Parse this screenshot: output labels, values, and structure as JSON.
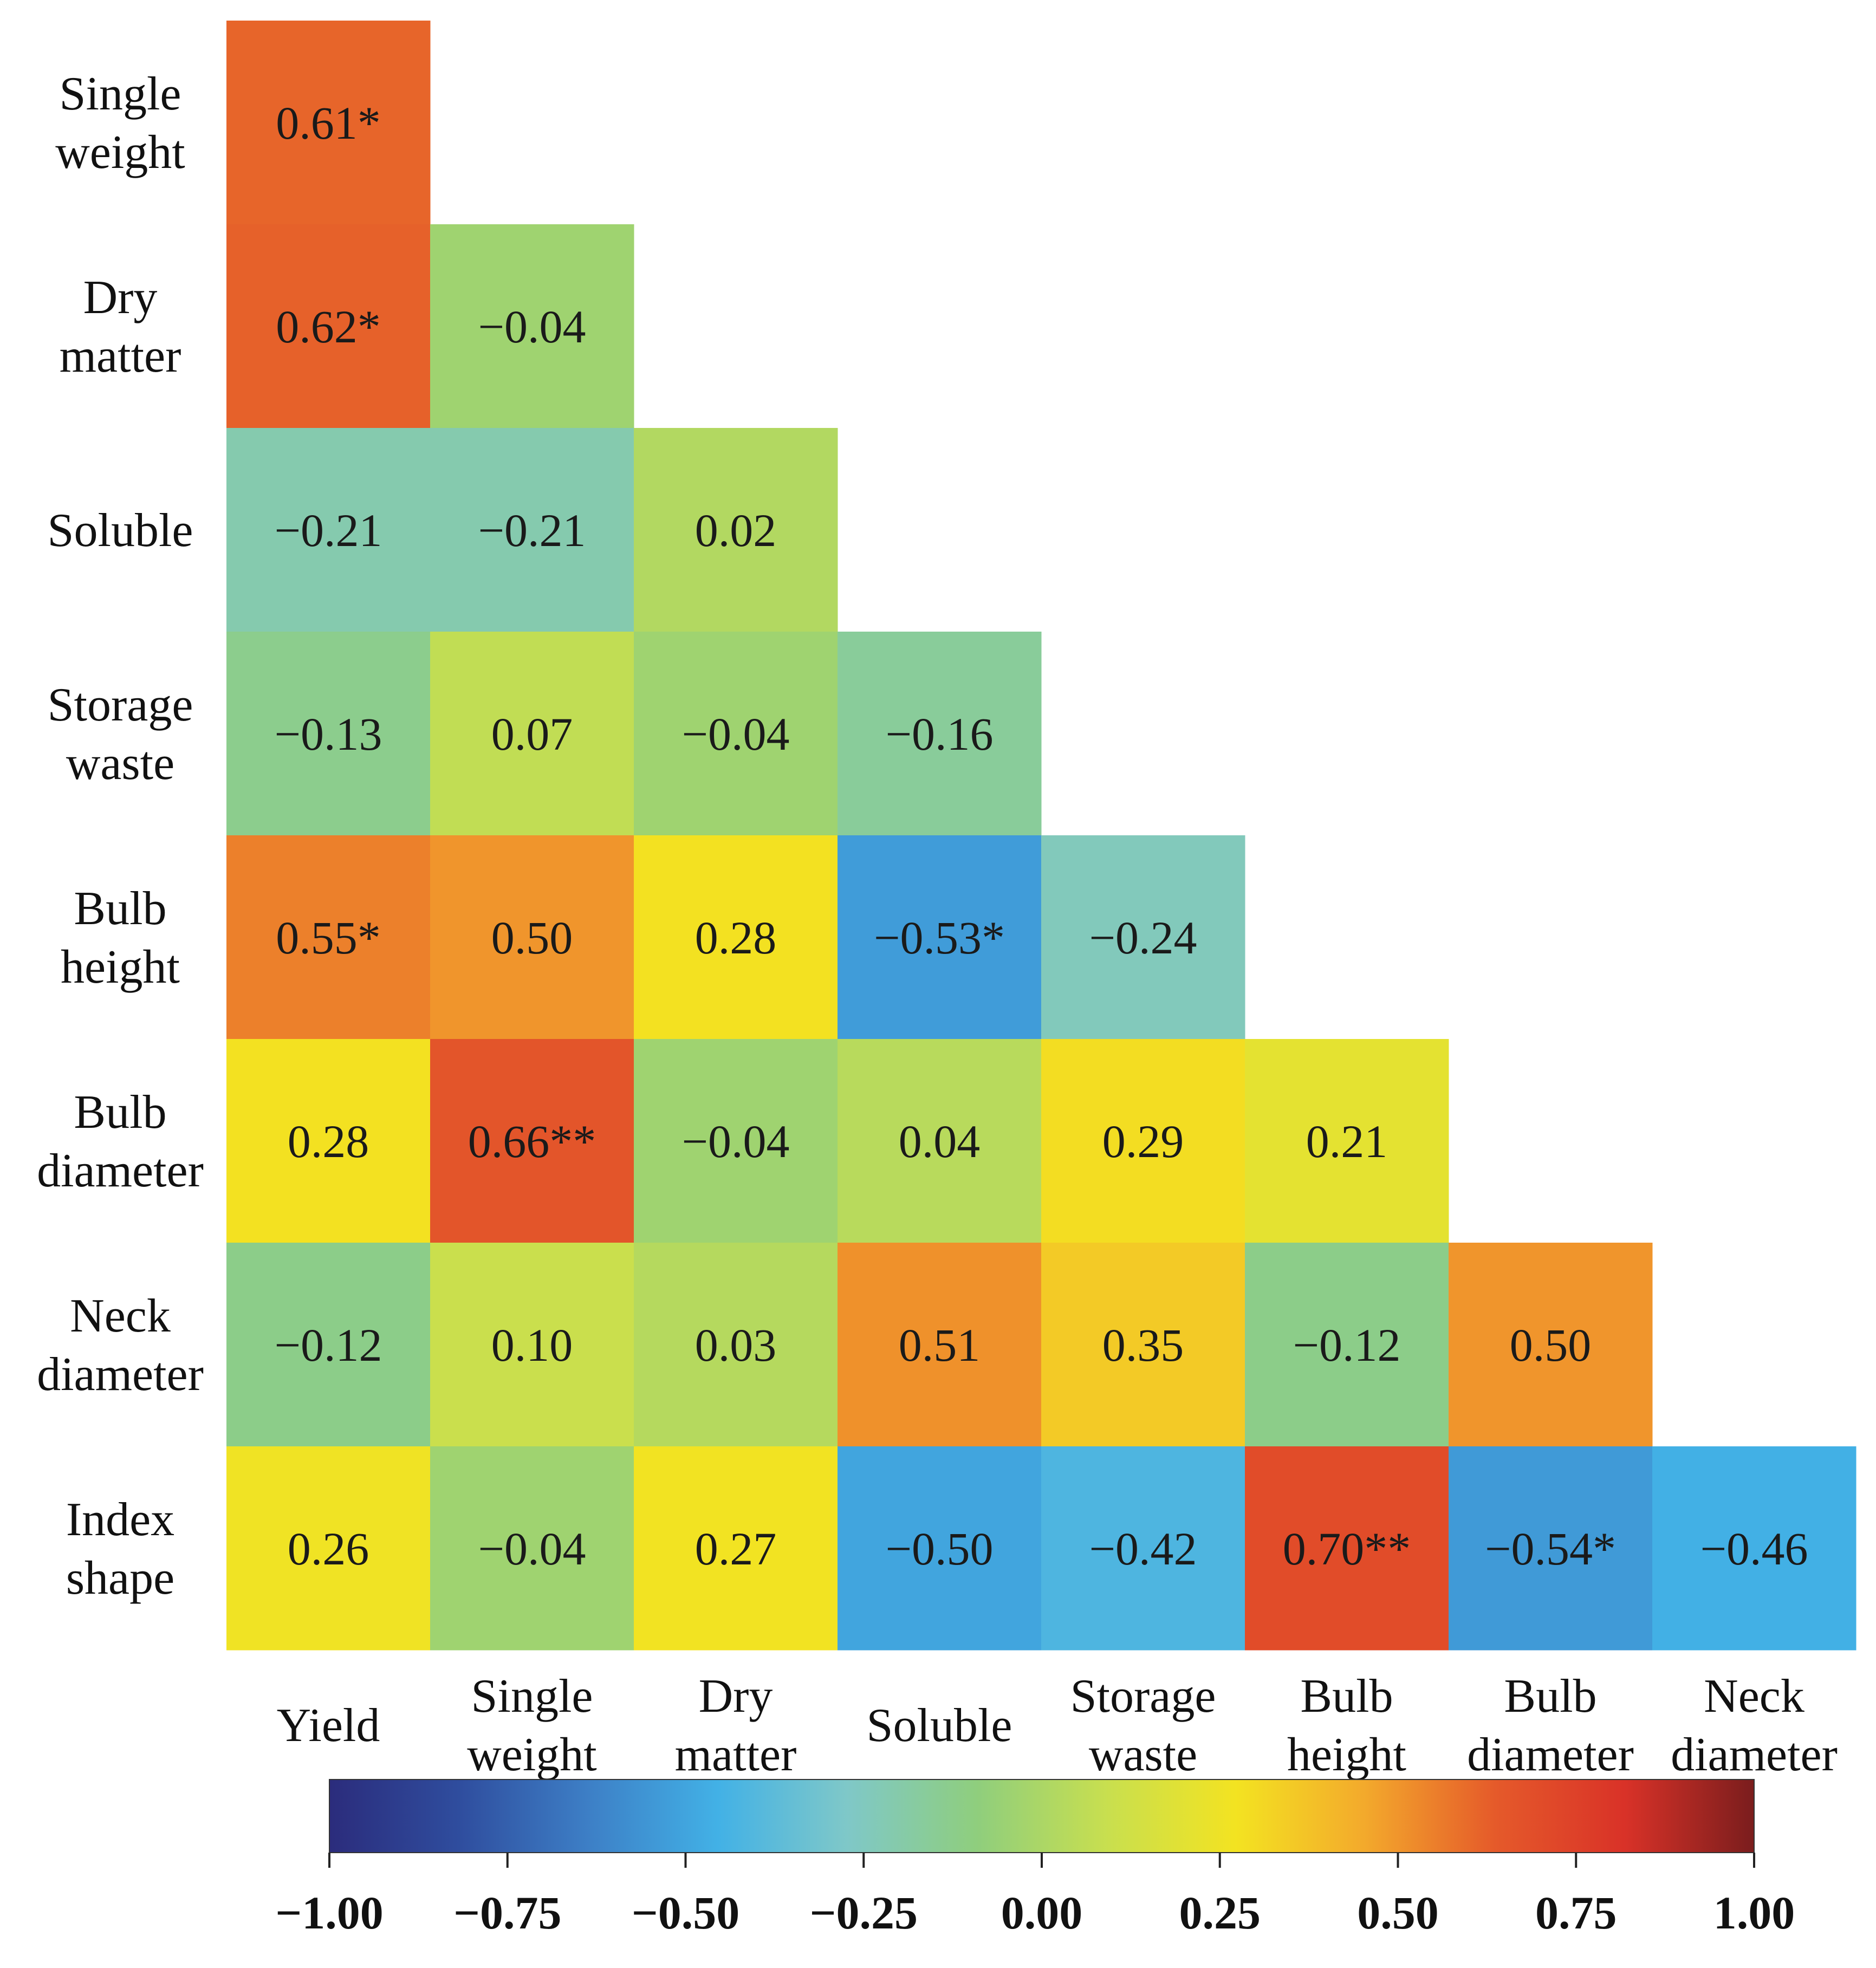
{
  "chart_data": {
    "type": "heatmap",
    "title": "",
    "row_labels": [
      [
        "Single",
        "weight"
      ],
      [
        "Dry",
        "matter"
      ],
      [
        "Soluble"
      ],
      [
        "Storage",
        "waste"
      ],
      [
        "Bulb",
        "height"
      ],
      [
        "Bulb",
        "diameter"
      ],
      [
        "Neck",
        "diameter"
      ],
      [
        "Index",
        "shape"
      ]
    ],
    "column_labels": [
      [
        "Yield"
      ],
      [
        "Single",
        "weight"
      ],
      [
        "Dry",
        "matter"
      ],
      [
        "Soluble"
      ],
      [
        "Storage",
        "waste"
      ],
      [
        "Bulb",
        "height"
      ],
      [
        "Bulb",
        "diameter"
      ],
      [
        "Neck",
        "diameter"
      ]
    ],
    "values": [
      [
        0.61
      ],
      [
        0.62,
        -0.04
      ],
      [
        -0.21,
        -0.21,
        0.02
      ],
      [
        -0.13,
        0.07,
        -0.04,
        -0.16
      ],
      [
        0.55,
        0.5,
        0.28,
        -0.53,
        -0.24
      ],
      [
        0.28,
        0.66,
        -0.04,
        0.04,
        0.29,
        0.21
      ],
      [
        -0.12,
        0.1,
        0.03,
        0.51,
        0.35,
        -0.12,
        0.5
      ],
      [
        0.26,
        -0.04,
        0.27,
        -0.5,
        -0.42,
        0.7,
        -0.54,
        -0.46
      ]
    ],
    "cell_labels": [
      [
        "0.61*"
      ],
      [
        "0.62*",
        "−0.04"
      ],
      [
        "−0.21",
        "−0.21",
        "0.02"
      ],
      [
        "−0.13",
        "0.07",
        "−0.04",
        "−0.16"
      ],
      [
        "0.55*",
        "0.50",
        "0.28",
        "−0.53*",
        "−0.24"
      ],
      [
        "0.28",
        "0.66**",
        "−0.04",
        "0.04",
        "0.29",
        "0.21"
      ],
      [
        "−0.12",
        "0.10",
        "0.03",
        "0.51",
        "0.35",
        "−0.12",
        "0.50"
      ],
      [
        "0.26",
        "−0.04",
        "0.27",
        "−0.50",
        "−0.42",
        "0.70**",
        "−0.54*",
        "−0.46"
      ]
    ],
    "colorbar": {
      "range": [
        -1.0,
        1.0
      ],
      "ticks": [
        -1.0,
        -0.75,
        -0.5,
        -0.25,
        0.0,
        0.25,
        0.5,
        0.75,
        1.0
      ],
      "tick_labels": [
        "−1.00",
        "−0.75",
        "−0.50",
        "−0.25",
        "0.00",
        "0.25",
        "0.50",
        "0.75",
        "1.00"
      ],
      "colors": [
        "#2b2c7c",
        "#2f4d9e",
        "#3d7fc6",
        "#42b1e6",
        "#7fc8c8",
        "#8fce7d",
        "#c8df4f",
        "#f3e321",
        "#f3a92c",
        "#e55a2a",
        "#d93228",
        "#7a1d1d"
      ]
    }
  }
}
